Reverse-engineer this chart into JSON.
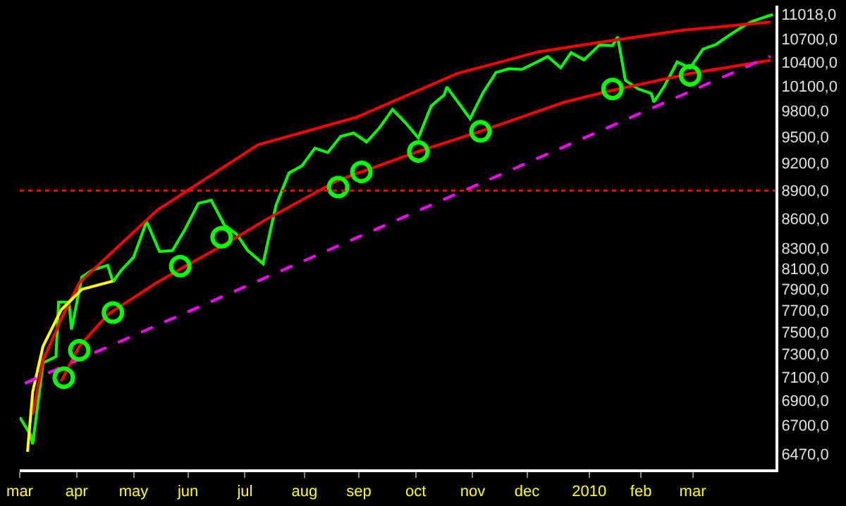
{
  "chart_data": {
    "type": "line",
    "log": "y",
    "grid": false,
    "x": [
      "2009-03-02",
      "2009-03-06",
      "2009-03-09",
      "2009-03-13",
      "2009-03-20",
      "2009-03-23",
      "2009-03-27",
      "2009-03-30",
      "2009-04-03",
      "2009-04-09",
      "2009-04-17",
      "2009-04-21",
      "2009-04-24",
      "2009-05-01",
      "2009-05-08",
      "2009-05-15",
      "2009-05-22",
      "2009-05-29",
      "2009-06-05",
      "2009-06-12",
      "2009-06-19",
      "2009-06-26",
      "2009-07-02",
      "2009-07-10",
      "2009-07-17",
      "2009-07-24",
      "2009-07-31",
      "2009-08-07",
      "2009-08-14",
      "2009-08-21",
      "2009-08-28",
      "2009-09-04",
      "2009-09-11",
      "2009-09-18",
      "2009-09-25",
      "2009-10-02",
      "2009-10-09",
      "2009-10-16",
      "2009-10-19",
      "2009-10-30",
      "2009-11-06",
      "2009-11-13",
      "2009-11-20",
      "2009-11-27",
      "2009-12-04",
      "2009-12-11",
      "2009-12-18",
      "2009-12-24",
      "2009-12-31",
      "2010-01-08",
      "2010-01-15",
      "2010-01-19",
      "2010-01-22",
      "2010-01-29",
      "2010-02-05",
      "2010-02-08",
      "2010-02-12",
      "2010-02-19",
      "2010-02-26",
      "2010-03-05",
      "2010-03-12",
      "2010-03-19",
      "2010-03-26",
      "2010-04-01",
      "2010-04-09",
      "2010-04-13"
    ],
    "series": [
      {
        "color": "#00ff00",
        "values": [
          6763,
          6627,
          6547,
          7224,
          7279,
          7776,
          7776,
          7523,
          8017,
          8083,
          8131,
          7969,
          8076,
          8212,
          8575,
          8268,
          8277,
          8500,
          8764,
          8799,
          8539,
          8438,
          8280,
          8146,
          8743,
          9093,
          9171,
          9370,
          9321,
          9505,
          9544,
          9441,
          9605,
          9820,
          9665,
          9487,
          9864,
          9995,
          10092,
          9712,
          10023,
          10270,
          10318,
          10309,
          10388,
          10471,
          10328,
          10520,
          10428,
          10618,
          10610,
          10725,
          10172,
          10067,
          10012,
          9908,
          10099,
          10402,
          10325,
          10566,
          10625,
          10742,
          10850,
          10927,
          10997,
          11018
        ]
      },
      {
        "color": "#ff0000",
        "x": [
          "2009-03-09",
          "2009-03-13",
          "2009-03-24",
          "2009-04-02",
          "2009-05-14",
          "2009-07-08",
          "2009-08-31",
          "2009-10-23",
          "2009-12-07",
          "2010-01-13",
          "2010-02-23",
          "2010-04-12"
        ],
        "values": [
          6786,
          7248,
          7617,
          7960,
          8690,
          9408,
          9727,
          10257,
          10528,
          10666,
          10810,
          10918
        ]
      },
      {
        "color": "#ff0000",
        "x": [
          "2009-03-24",
          "2009-04-02",
          "2009-04-17",
          "2009-05-14",
          "2009-06-04",
          "2009-06-23",
          "2009-07-13",
          "2009-08-20",
          "2009-10-02",
          "2009-11-05",
          "2009-12-21",
          "2010-01-13",
          "2010-02-26",
          "2010-04-12"
        ],
        "values": [
          7065,
          7371,
          7660,
          7963,
          8180,
          8366,
          8592,
          9013,
          9333,
          9564,
          9903,
          10037,
          10257,
          10424
        ]
      },
      {
        "color": "#ffff00",
        "x": [
          "2009-03-05",
          "2009-03-09",
          "2009-03-13",
          "2009-03-24",
          "2009-04-03",
          "2009-04-21"
        ],
        "values": [
          6486,
          6975,
          7371,
          7703,
          7898,
          7977
        ]
      },
      {
        "color": "#ff00ff",
        "line_style": "dashed",
        "x": [
          "2009-03-04",
          "2009-12-08",
          "2010-04-12"
        ],
        "values": [
          7048,
          9268,
          10475
        ]
      },
      {
        "type": "scatter",
        "color": "#00ff00",
        "marker": "circle",
        "x": [
          "2009-03-25",
          "2009-04-02",
          "2009-04-21",
          "2009-05-27",
          "2009-06-18",
          "2009-08-20",
          "2009-09-02",
          "2009-10-02",
          "2009-11-05",
          "2010-01-15",
          "2010-02-26"
        ],
        "values": [
          7096,
          7336,
          7678,
          8122,
          8411,
          8939,
          9104,
          9333,
          9564,
          10068,
          10234
        ]
      }
    ],
    "xlim": [
      "2009-03-02",
      "2010-04-14"
    ],
    "xticks": [
      {
        "value": "2009-03-02",
        "label": "mar"
      },
      {
        "value": "2009-04-01",
        "label": "apr"
      },
      {
        "value": "2009-05-01",
        "label": "may"
      },
      {
        "value": "2009-06-01",
        "label": "jun"
      },
      {
        "value": "2009-07-01",
        "label": "jul"
      },
      {
        "value": "2009-08-03",
        "label": "aug"
      },
      {
        "value": "2009-09-01",
        "label": "sep"
      },
      {
        "value": "2009-10-01",
        "label": "oct"
      },
      {
        "value": "2009-11-02",
        "label": "nov"
      },
      {
        "value": "2009-12-01",
        "label": "dec"
      },
      {
        "value": "2010-01-04",
        "label": "2010"
      },
      {
        "value": "2010-02-01",
        "label": "feb"
      },
      {
        "value": "2010-03-01",
        "label": "mar"
      }
    ],
    "ylim": [
      6350,
      11137
    ],
    "yticks": [
      {
        "value": 6470,
        "label": "6470,0"
      },
      {
        "value": 6700,
        "label": "6700,0"
      },
      {
        "value": 6900,
        "label": "6900,0"
      },
      {
        "value": 7100,
        "label": "7100,0"
      },
      {
        "value": 7300,
        "label": "7300,0"
      },
      {
        "value": 7500,
        "label": "7500,0"
      },
      {
        "value": 7700,
        "label": "7700,0"
      },
      {
        "value": 7900,
        "label": "7900,0"
      },
      {
        "value": 8100,
        "label": "8100,0"
      },
      {
        "value": 8300,
        "label": "8300,0"
      },
      {
        "value": 8600,
        "label": "8600,0"
      },
      {
        "value": 8900,
        "label": "8900,0"
      },
      {
        "value": 9200,
        "label": "9200,0"
      },
      {
        "value": 9500,
        "label": "9500,0"
      },
      {
        "value": 9800,
        "label": "9800,0"
      },
      {
        "value": 10100,
        "label": "10100,0"
      },
      {
        "value": 10400,
        "label": "10400,0"
      },
      {
        "value": 10700,
        "label": "10700,0"
      },
      {
        "value": 11018,
        "label": "11018,0"
      }
    ],
    "ref_lines": [
      {
        "axis": "y",
        "value": 8900,
        "color": "#ff0000",
        "line_style": "dotted"
      }
    ]
  }
}
